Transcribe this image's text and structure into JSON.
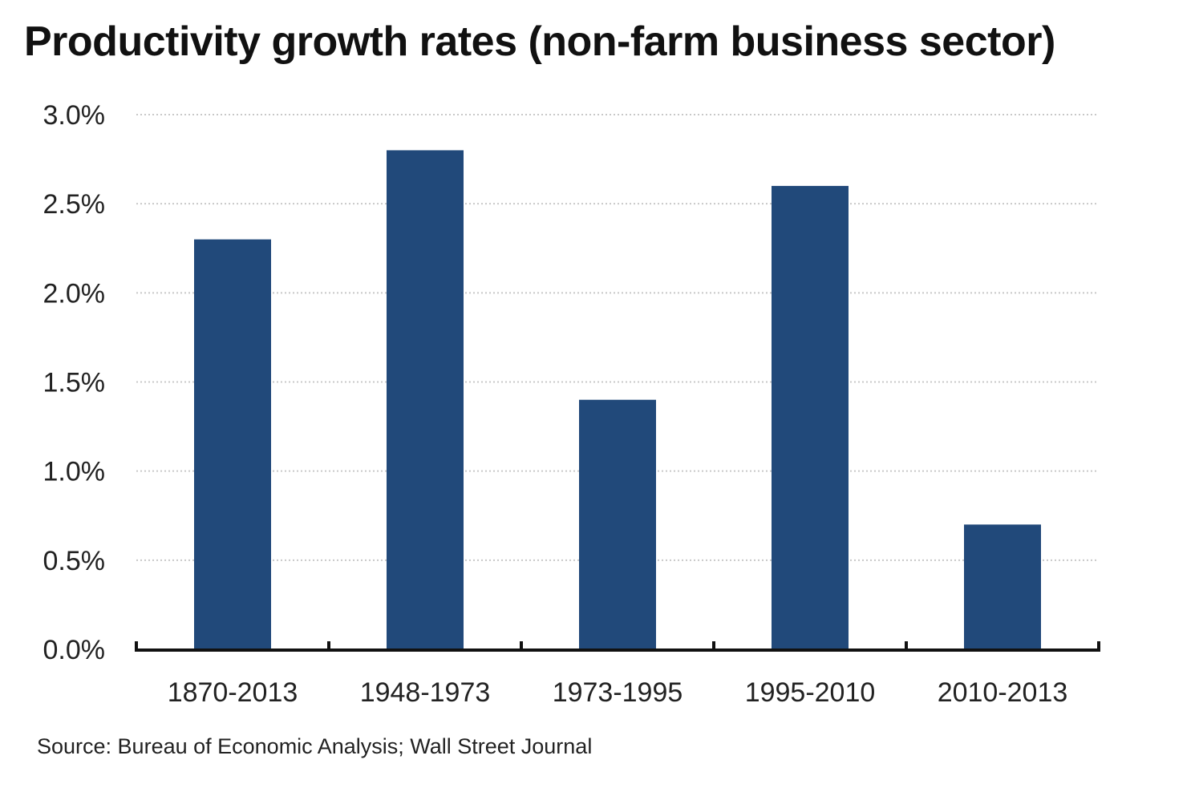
{
  "chart_data": {
    "type": "bar",
    "title": "Productivity growth rates (non-farm business sector)",
    "categories": [
      "1870-2013",
      "1948-1973",
      "1973-1995",
      "1995-2010",
      "2010-2013"
    ],
    "values": [
      2.3,
      2.8,
      1.4,
      2.6,
      0.7
    ],
    "ylim": [
      0,
      3.0
    ],
    "yticks": [
      0,
      0.5,
      1.0,
      1.5,
      2.0,
      2.5,
      3.0
    ],
    "ytick_labels": [
      "0.0%",
      "0.5%",
      "1.0%",
      "1.5%",
      "2.0%",
      "2.5%",
      "3.0%"
    ],
    "xlabel": "",
    "ylabel": "",
    "grid": "horizontal dotted",
    "legend": "none",
    "bar_color": "#21497a",
    "gridline_color": "#c8c8c8",
    "axis_color": "#111111"
  },
  "source": "Source: Bureau of Economic Analysis; Wall Street Journal"
}
